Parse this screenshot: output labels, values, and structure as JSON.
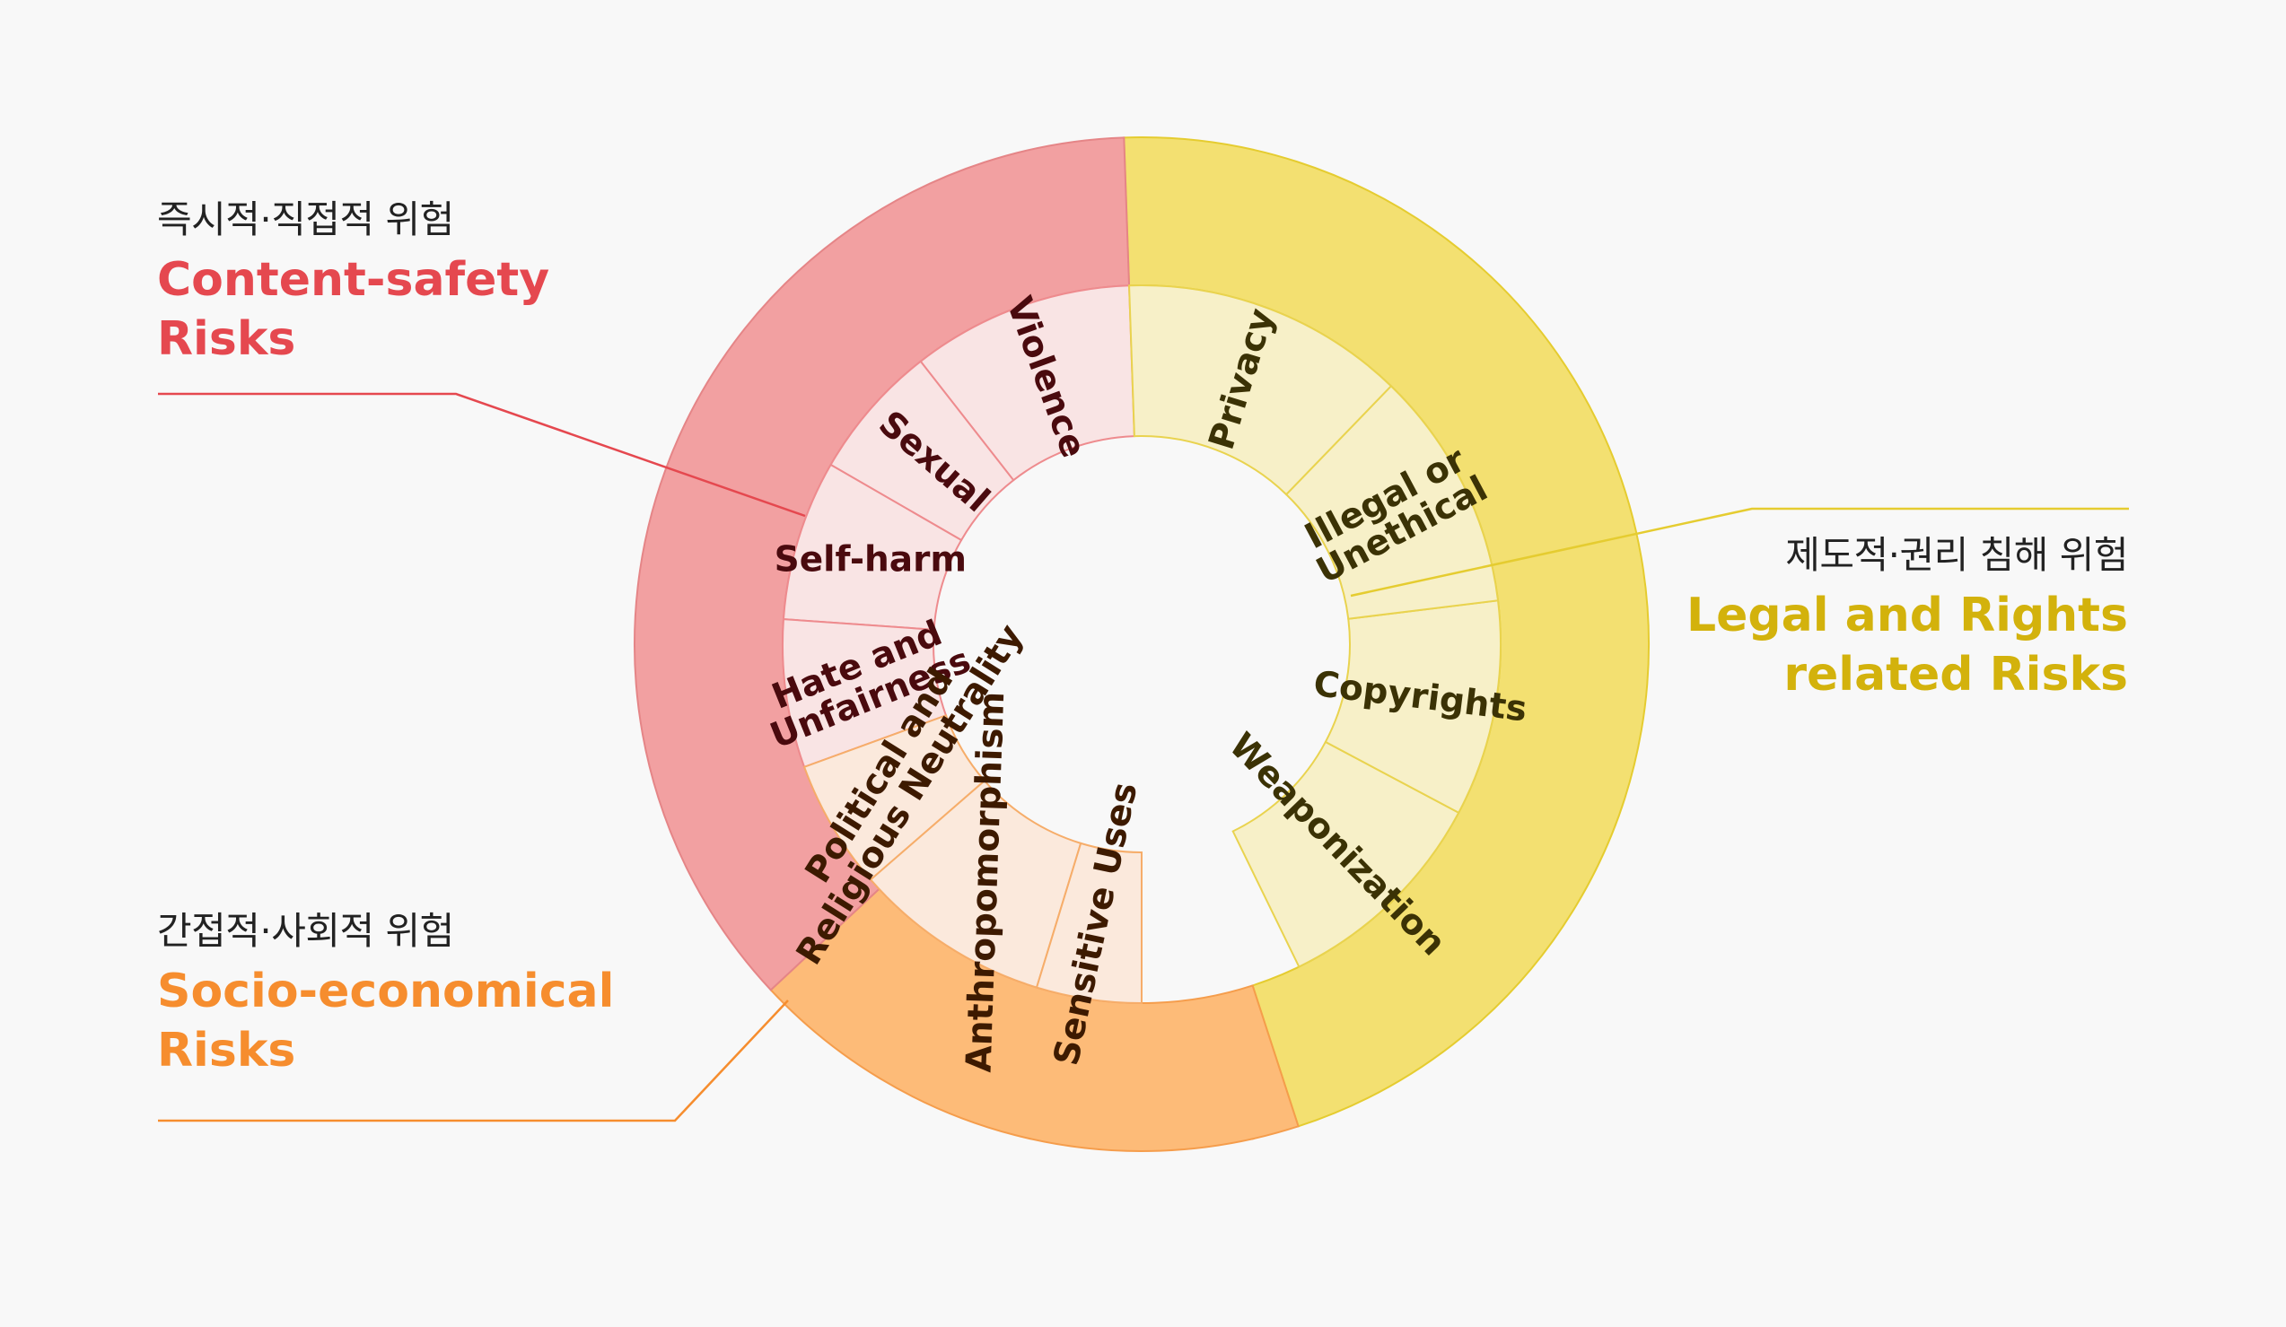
{
  "groups": [
    {
      "id": "content",
      "subtitle": "즉시적·직접적 위험",
      "title_lines": [
        "Content-safety",
        "Risks"
      ],
      "color": "#e5484f",
      "outer_fill": "#f2a0a1",
      "outer_stroke": "#e58587",
      "inner_fill": "#f9e4e4",
      "inner_stroke": "#ee8b8e",
      "text_color": "#4a0a0e"
    },
    {
      "id": "socio",
      "subtitle": "간접적·사회적 위험",
      "title_lines": [
        "Socio-economical",
        "Risks"
      ],
      "color": "#f68d2e",
      "outer_fill": "#fdbb78",
      "outer_stroke": "#f59d4c",
      "inner_fill": "#fbe9dc",
      "inner_stroke": "#f6ad6a",
      "text_color": "#3d1a00"
    },
    {
      "id": "legal",
      "subtitle": "제도적·권리 침해 위험",
      "title_lines": [
        "Legal and Rights",
        "related Risks"
      ],
      "color": "#d3b20c",
      "outer_fill": "#f3e071",
      "outer_stroke": "#e5cc30",
      "inner_fill": "#f7f0c8",
      "inner_stroke": "#e9d34f",
      "text_color": "#3b3205"
    }
  ],
  "segments": [
    {
      "group": "content",
      "lines": [
        "Violence"
      ]
    },
    {
      "group": "content",
      "lines": [
        "Sexual"
      ]
    },
    {
      "group": "content",
      "lines": [
        "Self-harm"
      ]
    },
    {
      "group": "content",
      "lines": [
        "Hate and",
        "Unfairness"
      ]
    },
    {
      "group": "socio",
      "lines": [
        "Political and",
        "Religious Neutrality"
      ]
    },
    {
      "group": "socio",
      "lines": [
        "Anthropomorphism"
      ]
    },
    {
      "group": "socio",
      "lines": [
        "Sensitive Uses"
      ]
    },
    {
      "group": "legal",
      "lines": [
        "Weaponization"
      ]
    },
    {
      "group": "legal",
      "lines": [
        "Copyrights"
      ]
    },
    {
      "group": "legal",
      "lines": [
        "Illegal or",
        "Unethical"
      ]
    },
    {
      "group": "legal",
      "lines": [
        "Privacy"
      ]
    }
  ]
}
